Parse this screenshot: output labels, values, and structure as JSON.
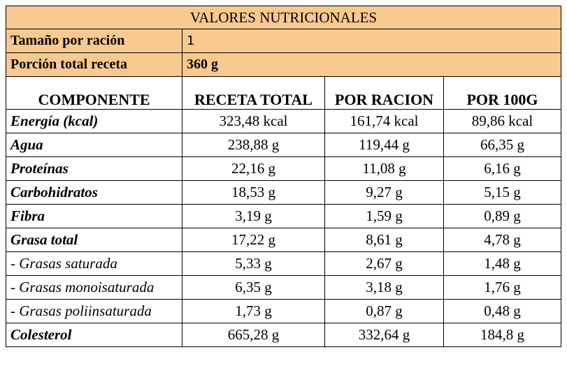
{
  "title": "VALORES NUTRICIONALES",
  "info": [
    {
      "label": "Tamaño por ración",
      "value": "1"
    },
    {
      "label": "Porción total receta",
      "value": "360 g"
    }
  ],
  "headers": [
    "COMPONENTE",
    "RECETA TOTAL",
    "POR RACION",
    "POR 100G"
  ],
  "rows": [
    {
      "name": "Energía (kcal)",
      "total": "323,48 kcal",
      "racion": "161,74 kcal",
      "per100": "89,86 kcal",
      "bold": true
    },
    {
      "name": "Agua",
      "total": "238,88 g",
      "racion": "119,44 g",
      "per100": "66,35 g",
      "bold": true
    },
    {
      "name": "Proteínas",
      "total": "22,16 g",
      "racion": "11,08 g",
      "per100": "6,16 g",
      "bold": true
    },
    {
      "name": "Carbohidratos",
      "total": "18,53 g",
      "racion": "9,27 g",
      "per100": "5,15 g",
      "bold": true
    },
    {
      "name": "Fibra",
      "total": "3,19 g",
      "racion": "1,59 g",
      "per100": "0,89 g",
      "bold": true
    },
    {
      "name": "Grasa total",
      "total": "17,22 g",
      "racion": "8,61 g",
      "per100": "4,78 g",
      "bold": true
    },
    {
      "name": "- Grasas saturada",
      "total": "5,33 g",
      "racion": "2,67 g",
      "per100": "1,48 g",
      "bold": false
    },
    {
      "name": "- Grasas monoisaturada",
      "total": "6,35 g",
      "racion": "3,18 g",
      "per100": "1,76 g",
      "bold": false
    },
    {
      "name": "- Grasas poliinsaturada",
      "total": "1,73 g",
      "racion": "0,87 g",
      "per100": "0,48 g",
      "bold": false
    },
    {
      "name": "Colesterol",
      "total": "665,28 g",
      "racion": "332,64 g",
      "per100": "184,8 g",
      "bold": true
    }
  ]
}
